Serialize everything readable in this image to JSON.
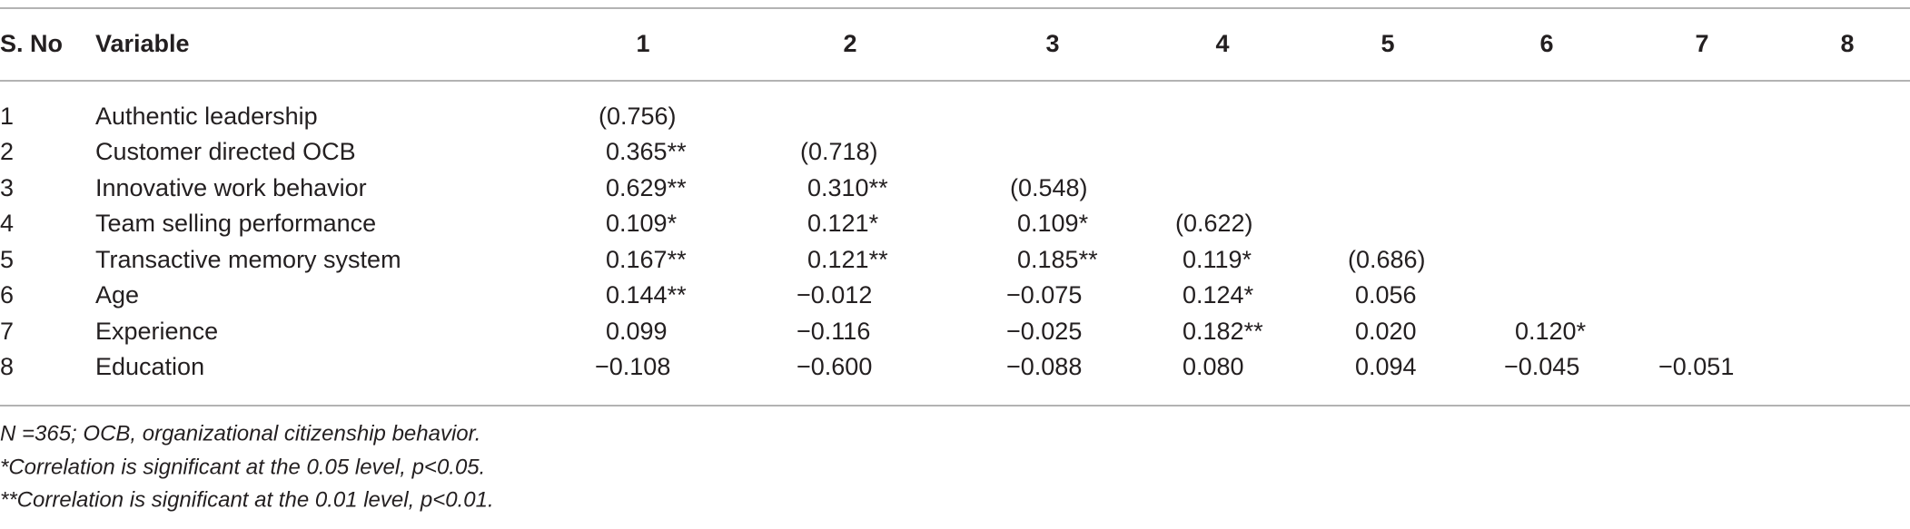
{
  "table": {
    "header": [
      "S. No",
      "Variable",
      "1",
      "2",
      "3",
      "4",
      "5",
      "6",
      "7",
      "8"
    ],
    "rows": [
      {
        "no": "1",
        "variable": "Authentic leadership",
        "values": [
          "(0.756)"
        ]
      },
      {
        "no": "2",
        "variable": "Customer directed OCB",
        "values": [
          "0.365**",
          "(0.718)"
        ]
      },
      {
        "no": "3",
        "variable": "Innovative work behavior",
        "values": [
          "0.629**",
          "0.310**",
          "(0.548)"
        ]
      },
      {
        "no": "4",
        "variable": "Team selling performance",
        "values": [
          "0.109*",
          "0.121*",
          "0.109*",
          "(0.622)"
        ]
      },
      {
        "no": "5",
        "variable": "Transactive memory system",
        "values": [
          "0.167**",
          "0.121**",
          "0.185**",
          "0.119*",
          "(0.686)"
        ]
      },
      {
        "no": "6",
        "variable": "Age",
        "values": [
          "0.144**",
          "−0.012",
          "−0.075",
          "0.124*",
          "0.056"
        ]
      },
      {
        "no": "7",
        "variable": "Experience",
        "values": [
          "0.099",
          "−0.116",
          "−0.025",
          "0.182**",
          "0.020",
          "0.120*"
        ]
      },
      {
        "no": "8",
        "variable": "Education",
        "values": [
          "−0.108",
          "−0.600",
          "−0.088",
          "0.080",
          "0.094",
          "−0.045",
          "−0.051"
        ]
      }
    ],
    "notes": [
      "N =365; OCB, organizational citizenship behavior.",
      "*Correlation is significant at the 0.05 level, p<0.05.",
      "**Correlation is significant at the 0.01 level, p<0.01."
    ]
  }
}
